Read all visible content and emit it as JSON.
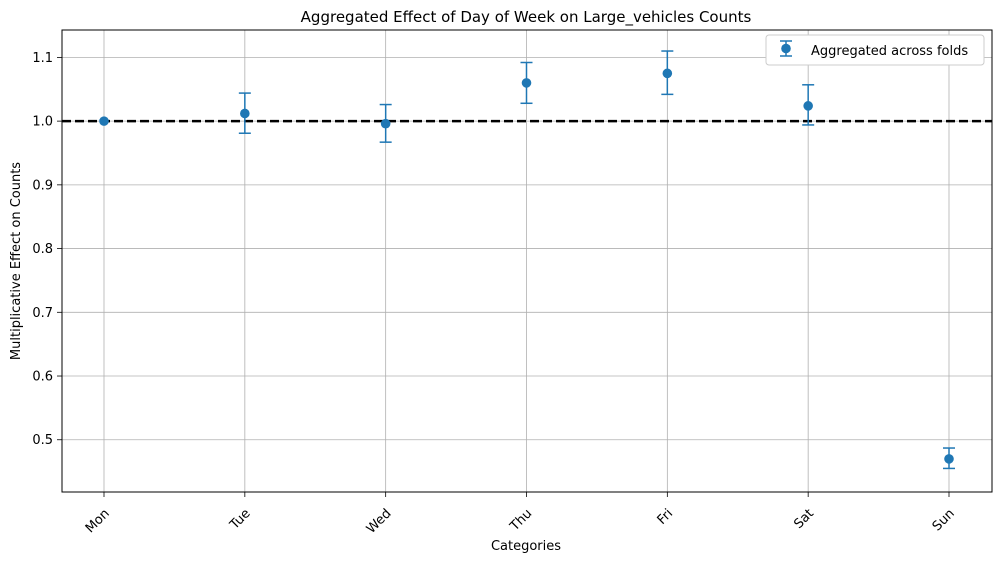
{
  "chart_data": {
    "type": "scatter",
    "title": "Aggregated Effect of Day of Week on Large_vehicles Counts",
    "xlabel": "Categories",
    "ylabel": "Multiplicative Effect on Counts",
    "categories": [
      "Mon",
      "Tue",
      "Wed",
      "Thu",
      "Fri",
      "Sat",
      "Sun"
    ],
    "series": [
      {
        "name": "Aggregated across folds",
        "values": [
          1.0,
          1.012,
          0.996,
          1.06,
          1.075,
          1.024,
          0.47
        ],
        "lower": [
          1.0,
          0.981,
          0.967,
          1.028,
          1.042,
          0.994,
          0.455
        ],
        "upper": [
          1.0,
          1.044,
          1.026,
          1.092,
          1.11,
          1.057,
          0.487
        ],
        "color": "#1f77b4"
      }
    ],
    "reference_line": {
      "y": 1.0,
      "style": "dashed",
      "color": "#000000"
    },
    "yticks": [
      0.5,
      0.6,
      0.7,
      0.8,
      0.9,
      1.0,
      1.1
    ],
    "ylim": [
      0.418,
      1.143
    ],
    "grid": true,
    "legend_position": "top-right"
  }
}
